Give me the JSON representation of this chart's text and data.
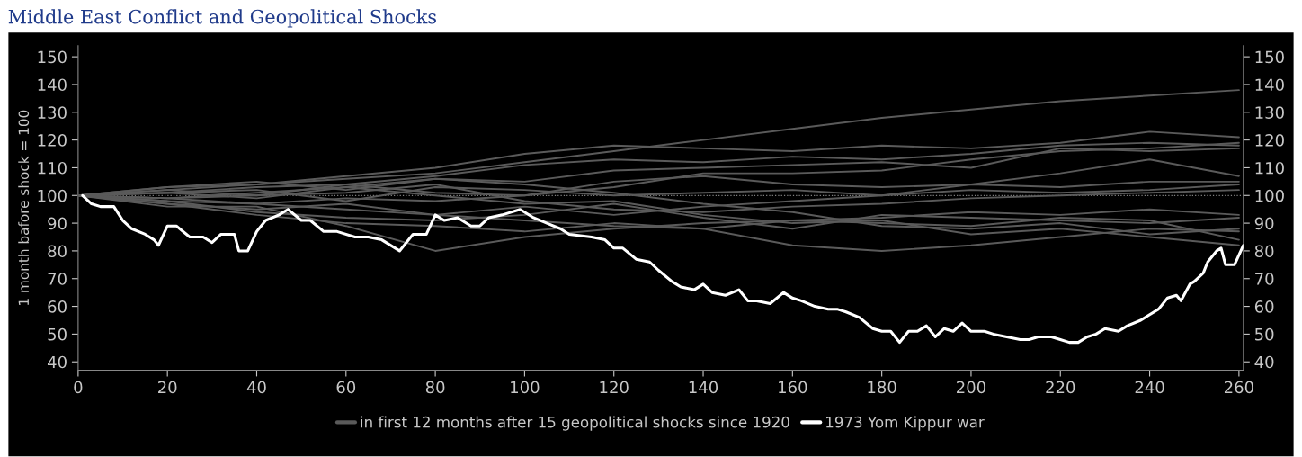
{
  "chart_data": {
    "type": "line",
    "title": "Middle East Conflict and Geopolitical Shocks",
    "ylabel": "1 month bafore shock = 100",
    "xlim": [
      0,
      261
    ],
    "xticks": [
      0,
      20,
      40,
      60,
      80,
      100,
      120,
      140,
      160,
      180,
      200,
      220,
      240,
      260
    ],
    "ylim": [
      37,
      154
    ],
    "yticks": [
      40,
      50,
      60,
      70,
      80,
      90,
      100,
      110,
      120,
      130,
      140,
      150
    ],
    "y2lim": [
      37,
      154
    ],
    "y2ticks": [
      40,
      50,
      60,
      70,
      80,
      90,
      100,
      110,
      120,
      130,
      140,
      150
    ],
    "grid": false,
    "legend": "bottom",
    "line_style": "solid",
    "marker": "none",
    "ref_lines": [
      {
        "axis": "y",
        "value": 100,
        "color": "#808080",
        "line_style": "dotted"
      }
    ],
    "x": [
      0,
      20,
      40,
      60,
      80,
      100,
      120,
      140,
      160,
      180,
      200,
      220,
      240,
      260
    ],
    "series": [
      {
        "name": "in first 12 months after 15 geopolitical shocks since 1920",
        "color": "#5a5a5a",
        "values": [
          100,
          103,
          104,
          106,
          108,
          112,
          116,
          120,
          124,
          128,
          131,
          134,
          136,
          138
        ]
      },
      {
        "color": "#5a5a5a",
        "values": [
          100,
          102,
          104,
          107,
          110,
          115,
          118,
          117,
          116,
          118,
          117,
          119,
          123,
          121
        ]
      },
      {
        "color": "#5a5a5a",
        "values": [
          100,
          101,
          103,
          104,
          107,
          111,
          113,
          112,
          114,
          113,
          115,
          118,
          119,
          118
        ]
      },
      {
        "color": "#5a5a5a",
        "values": [
          100,
          99,
          101,
          103,
          106,
          105,
          109,
          110,
          111,
          112,
          110,
          117,
          116,
          117
        ]
      },
      {
        "color": "#5a5a5a",
        "values": [
          100,
          102,
          100,
          104,
          101,
          100,
          103,
          108,
          108,
          109,
          113,
          116,
          117,
          119
        ]
      },
      {
        "color": "#5a5a5a",
        "values": [
          100,
          98,
          97,
          99,
          98,
          100,
          105,
          107,
          104,
          103,
          104,
          108,
          113,
          107
        ]
      },
      {
        "color": "#5a5a5a",
        "values": [
          100,
          101,
          102,
          98,
          103,
          102,
          100,
          101,
          102,
          100,
          104,
          103,
          105,
          105
        ]
      },
      {
        "color": "#5a5a5a",
        "values": [
          100,
          97,
          95,
          97,
          93,
          96,
          93,
          96,
          98,
          100,
          102,
          101,
          102,
          104
        ]
      },
      {
        "color": "#5a5a5a",
        "values": [
          100,
          99,
          100,
          101,
          104,
          98,
          95,
          94,
          96,
          97,
          99,
          100,
          101,
          102
        ]
      },
      {
        "color": "#5a5a5a",
        "values": [
          100,
          96,
          96,
          89,
          80,
          85,
          88,
          90,
          91,
          92,
          94,
          93,
          95,
          93
        ]
      },
      {
        "color": "#5a5a5a",
        "values": [
          100,
          98,
          94,
          92,
          91,
          93,
          97,
          92,
          88,
          93,
          92,
          91,
          90,
          92
        ]
      },
      {
        "color": "#5a5a5a",
        "values": [
          100,
          99,
          97,
          95,
          93,
          91,
          89,
          88,
          91,
          90,
          89,
          92,
          91,
          84
        ]
      },
      {
        "color": "#5a5a5a",
        "values": [
          100,
          97,
          93,
          90,
          89,
          87,
          90,
          88,
          82,
          80,
          82,
          85,
          88,
          87
        ]
      },
      {
        "color": "#5a5a5a",
        "values": [
          100,
          101,
          99,
          103,
          100,
          97,
          98,
          93,
          90,
          91,
          86,
          88,
          85,
          82
        ]
      },
      {
        "color": "#5a5a5a",
        "values": [
          100,
          103,
          105,
          102,
          106,
          104,
          101,
          97,
          94,
          89,
          88,
          90,
          86,
          88
        ]
      },
      {
        "name": "1973 Yom Kippur war",
        "color": "#ffffff",
        "x": [
          1,
          3,
          5,
          8,
          10,
          12,
          15,
          17,
          18,
          20,
          22,
          25,
          28,
          30,
          32,
          35,
          36,
          38,
          40,
          42,
          45,
          47,
          50,
          52,
          55,
          58,
          62,
          65,
          68,
          72,
          75,
          78,
          80,
          82,
          85,
          88,
          90,
          92,
          95,
          99,
          102,
          105,
          108,
          110,
          115,
          118,
          120,
          122,
          125,
          128,
          130,
          133,
          135,
          138,
          140,
          142,
          145,
          148,
          150,
          152,
          155,
          158,
          160,
          162,
          165,
          168,
          170,
          172,
          175,
          178,
          180,
          182,
          184,
          186,
          188,
          190,
          192,
          194,
          196,
          198,
          200,
          203,
          205,
          208,
          211,
          213,
          215,
          218,
          220,
          222,
          224,
          226,
          228,
          230,
          233,
          235,
          238,
          240,
          242,
          244,
          246,
          247,
          249,
          250,
          252,
          253,
          255,
          256,
          257,
          259,
          261
        ],
        "values": [
          100,
          97,
          96,
          96,
          91,
          88,
          86,
          84,
          82,
          89,
          89,
          85,
          85,
          83,
          86,
          86,
          80,
          80,
          87,
          91,
          93,
          95,
          91,
          91,
          87,
          87,
          85,
          85,
          84,
          80,
          86,
          86,
          93,
          91,
          92,
          89,
          89,
          92,
          93,
          95,
          92,
          90,
          88,
          86,
          85,
          84,
          81,
          81,
          77,
          76,
          73,
          69,
          67,
          66,
          68,
          65,
          64,
          66,
          62,
          62,
          61,
          65,
          63,
          62,
          60,
          59,
          59,
          58,
          56,
          52,
          51,
          51,
          47,
          51,
          51,
          53,
          49,
          52,
          51,
          54,
          51,
          51,
          50,
          49,
          48,
          48,
          49,
          49,
          48,
          47,
          47,
          49,
          50,
          52,
          51,
          53,
          55,
          57,
          59,
          63,
          64,
          62,
          68,
          69,
          72,
          76,
          80,
          81,
          75,
          75,
          82
        ]
      }
    ]
  }
}
